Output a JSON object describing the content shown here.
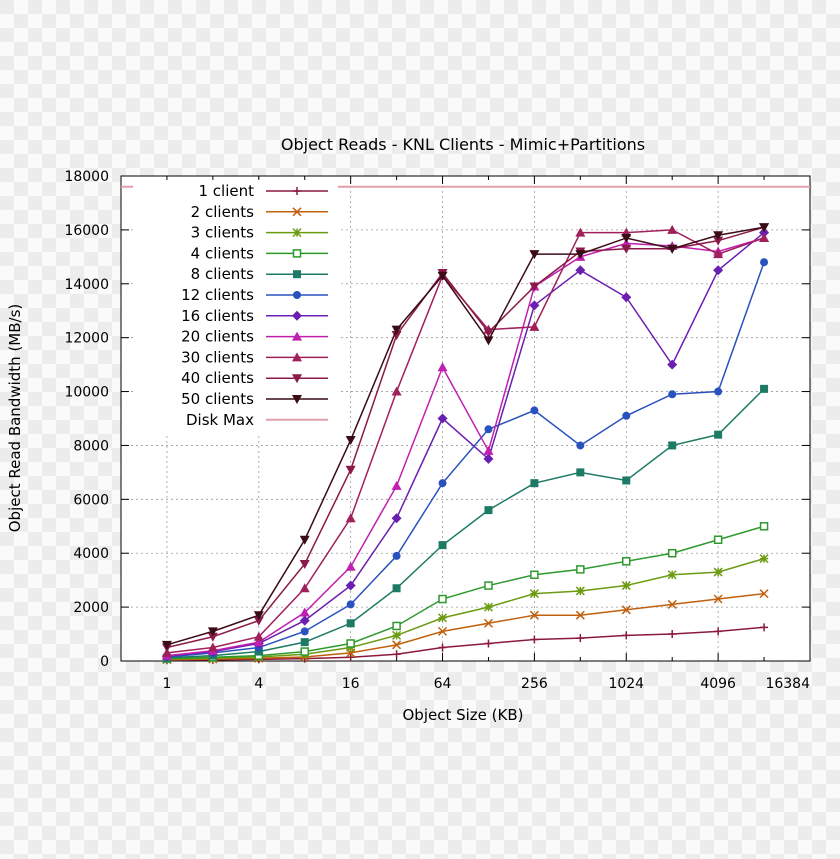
{
  "chart_data": {
    "type": "line",
    "title": "Object Reads - KNL Clients - Mimic+Partitions",
    "xlabel": "Object Size (KB)",
    "ylabel": "Object Read Bandwidth (MB/s)",
    "x_scale": "log2",
    "xlim": [
      0.5,
      16384
    ],
    "ylim": [
      0,
      18000
    ],
    "x_ticks": [
      "1",
      "4",
      "16",
      "64",
      "256",
      "1024",
      "4096",
      "16384"
    ],
    "y_ticks": [
      "0",
      "2000",
      "4000",
      "6000",
      "8000",
      "10000",
      "12000",
      "14000",
      "16000",
      "18000"
    ],
    "grid": true,
    "legend_position": "top-left",
    "x": [
      1,
      2,
      4,
      8,
      16,
      32,
      64,
      128,
      256,
      512,
      1024,
      2048,
      4096,
      8192
    ],
    "series": [
      {
        "name": "1 client",
        "color": "#8b1a3c",
        "marker": "plus",
        "values": [
          30,
          40,
          60,
          90,
          140,
          250,
          500,
          650,
          800,
          850,
          950,
          1000,
          1100,
          1250
        ]
      },
      {
        "name": "2 clients",
        "color": "#c0600c",
        "marker": "cross",
        "values": [
          50,
          70,
          100,
          150,
          300,
          600,
          1100,
          1400,
          1700,
          1700,
          1900,
          2100,
          2300,
          2500
        ]
      },
      {
        "name": "3 clients",
        "color": "#6b9b10",
        "marker": "star",
        "values": [
          70,
          100,
          150,
          250,
          500,
          950,
          1600,
          2000,
          2500,
          2600,
          2800,
          3200,
          3300,
          3800
        ]
      },
      {
        "name": "4 clients",
        "color": "#2e9a2e",
        "marker": "square-open",
        "values": [
          90,
          140,
          200,
          350,
          650,
          1300,
          2300,
          2800,
          3200,
          3400,
          3700,
          4000,
          4500,
          5000
        ]
      },
      {
        "name": "8 clients",
        "color": "#1d7a64",
        "marker": "square",
        "values": [
          120,
          200,
          350,
          700,
          1400,
          2700,
          4300,
          5600,
          6600,
          7000,
          6700,
          8000,
          8400,
          10100
        ]
      },
      {
        "name": "12 clients",
        "color": "#2a52be",
        "marker": "circle",
        "values": [
          150,
          300,
          500,
          1100,
          2100,
          3900,
          6600,
          8600,
          9300,
          8000,
          9100,
          9900,
          10000,
          14800
        ]
      },
      {
        "name": "16 clients",
        "color": "#6a1fb0",
        "marker": "diamond",
        "values": [
          180,
          350,
          650,
          1500,
          2800,
          5300,
          9000,
          7500,
          13200,
          14500,
          13500,
          11000,
          14500,
          15900
        ]
      },
      {
        "name": "20 clients",
        "color": "#c020b0",
        "marker": "triangle-up",
        "values": [
          200,
          380,
          700,
          1800,
          3500,
          6500,
          10900,
          7800,
          13900,
          15000,
          15500,
          15400,
          15200,
          15700
        ]
      },
      {
        "name": "30 clients",
        "color": "#a0205c",
        "marker": "triangle-up",
        "values": [
          300,
          500,
          900,
          2700,
          5300,
          10000,
          14300,
          12300,
          12400,
          15900,
          15900,
          16000,
          15100,
          15700
        ]
      },
      {
        "name": "40 clients",
        "color": "#8b1a4a",
        "marker": "triangle-down",
        "values": [
          500,
          900,
          1500,
          3600,
          7100,
          12100,
          14400,
          12200,
          13900,
          15200,
          15300,
          15300,
          15600,
          16100
        ]
      },
      {
        "name": "50 clients",
        "color": "#3a0c16",
        "marker": "triangle-down",
        "values": [
          600,
          1100,
          1700,
          4500,
          8200,
          12300,
          14300,
          11900,
          15100,
          15100,
          15700,
          15300,
          15800,
          16100
        ]
      },
      {
        "name": "Disk Max",
        "color": "#e0a0a8",
        "marker": "none",
        "constant": 17600
      }
    ]
  }
}
